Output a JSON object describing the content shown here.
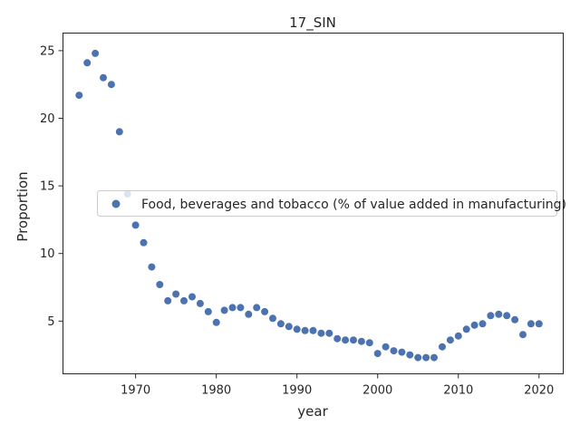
{
  "chart_data": {
    "type": "scatter",
    "title": "17_SIN",
    "xlabel": "year",
    "ylabel": "Proportion",
    "xlim": [
      1961,
      2023
    ],
    "ylim": [
      1.1,
      26.3
    ],
    "xticks": [
      1970,
      1980,
      1990,
      2000,
      2010,
      2020
    ],
    "yticks": [
      5,
      10,
      15,
      20,
      25
    ],
    "grid": false,
    "legend_position": "center-right",
    "series": [
      {
        "name": "Food, beverages and tobacco (% of value added in manufacturing)",
        "color": "#4c72b0",
        "points": [
          [
            1963,
            21.7
          ],
          [
            1964,
            24.1
          ],
          [
            1965,
            24.8
          ],
          [
            1966,
            23.0
          ],
          [
            1967,
            22.5
          ],
          [
            1968,
            19.0
          ],
          [
            1969,
            14.4
          ],
          [
            1970,
            12.1
          ],
          [
            1971,
            10.8
          ],
          [
            1972,
            9.0
          ],
          [
            1973,
            7.7
          ],
          [
            1974,
            6.5
          ],
          [
            1975,
            7.0
          ],
          [
            1976,
            6.5
          ],
          [
            1977,
            6.8
          ],
          [
            1978,
            6.3
          ],
          [
            1979,
            5.7
          ],
          [
            1980,
            4.9
          ],
          [
            1981,
            5.8
          ],
          [
            1982,
            6.0
          ],
          [
            1983,
            6.0
          ],
          [
            1984,
            5.5
          ],
          [
            1985,
            6.0
          ],
          [
            1986,
            5.7
          ],
          [
            1987,
            5.2
          ],
          [
            1988,
            4.8
          ],
          [
            1989,
            4.6
          ],
          [
            1990,
            4.4
          ],
          [
            1991,
            4.3
          ],
          [
            1992,
            4.3
          ],
          [
            1993,
            4.1
          ],
          [
            1994,
            4.1
          ],
          [
            1995,
            3.7
          ],
          [
            1996,
            3.6
          ],
          [
            1997,
            3.6
          ],
          [
            1998,
            3.5
          ],
          [
            1999,
            3.4
          ],
          [
            2000,
            2.6
          ],
          [
            2001,
            3.1
          ],
          [
            2002,
            2.8
          ],
          [
            2003,
            2.7
          ],
          [
            2004,
            2.5
          ],
          [
            2005,
            2.3
          ],
          [
            2006,
            2.3
          ],
          [
            2007,
            2.3
          ],
          [
            2008,
            3.1
          ],
          [
            2009,
            3.6
          ],
          [
            2010,
            3.9
          ],
          [
            2011,
            4.4
          ],
          [
            2012,
            4.7
          ],
          [
            2013,
            4.8
          ],
          [
            2014,
            5.4
          ],
          [
            2015,
            5.5
          ],
          [
            2016,
            5.4
          ],
          [
            2017,
            5.1
          ],
          [
            2018,
            4.0
          ],
          [
            2019,
            4.8
          ],
          [
            2020,
            4.8
          ]
        ]
      }
    ]
  }
}
